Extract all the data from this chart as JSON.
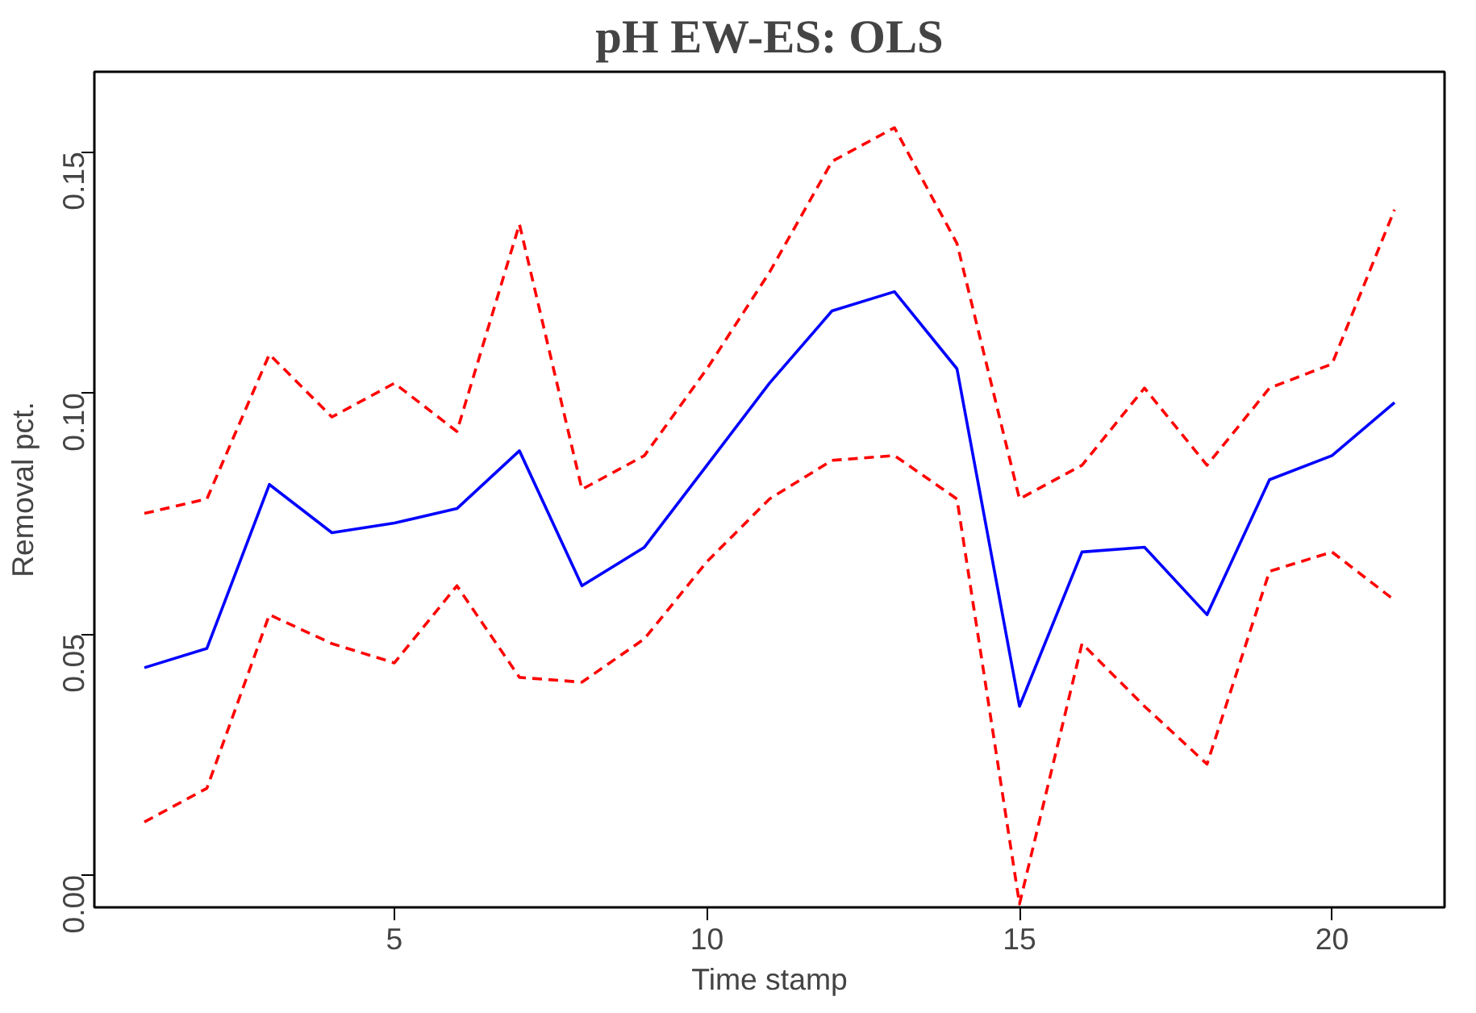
{
  "chart_data": {
    "type": "line",
    "title": "pH EW-ES: OLS",
    "xlabel": "Time stamp",
    "ylabel": "Removal pct.",
    "x": [
      1,
      2,
      3,
      4,
      5,
      6,
      7,
      8,
      9,
      10,
      11,
      12,
      13,
      14,
      15,
      16,
      17,
      18,
      19,
      20,
      21
    ],
    "xlim": [
      0.2,
      21.8
    ],
    "xticks": [
      5,
      10,
      15,
      20
    ],
    "ylim": [
      -0.0067,
      0.1666
    ],
    "yticks": [
      {
        "value": 0,
        "label": "0.00"
      },
      {
        "value": 0.05,
        "label": "0.05"
      },
      {
        "value": 0.1,
        "label": "0.10"
      },
      {
        "value": 0.15,
        "label": "0.15"
      }
    ],
    "grid": false,
    "series": [
      {
        "color": "#0000ff",
        "line_style": "solid",
        "values": [
          0.043,
          0.047,
          0.081,
          0.071,
          0.073,
          0.076,
          0.088,
          0.06,
          0.068,
          0.085,
          0.102,
          0.117,
          0.121,
          0.105,
          0.035,
          0.067,
          0.068,
          0.054,
          0.082,
          0.087,
          0.098
        ]
      },
      {
        "color": "#ff0000",
        "line_style": "dashed",
        "values": [
          0.075,
          0.078,
          0.108,
          0.095,
          0.102,
          0.092,
          0.135,
          0.08,
          0.087,
          0.105,
          0.125,
          0.148,
          0.155,
          0.131,
          0.078,
          0.085,
          0.101,
          0.085,
          0.101,
          0.106,
          0.138
        ]
      },
      {
        "color": "#ff0000",
        "line_style": "dashed",
        "values": [
          0.011,
          0.018,
          0.054,
          0.048,
          0.044,
          0.06,
          0.041,
          0.04,
          0.049,
          0.065,
          0.078,
          0.086,
          0.087,
          0.078,
          -0.006,
          0.048,
          0.035,
          0.023,
          0.063,
          0.067,
          0.057
        ]
      }
    ]
  }
}
